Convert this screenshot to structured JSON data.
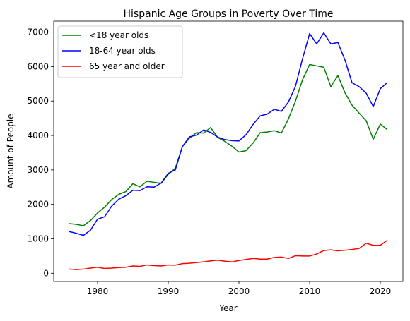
{
  "chart_data": {
    "type": "line",
    "title": "Hispanic Age Groups in Poverty Over Time",
    "xlabel": "Year",
    "ylabel": "Amount of People",
    "xlim": [
      1973.8,
      2023.2
    ],
    "ylim": [
      -240,
      7320
    ],
    "xticks": [
      1980,
      1990,
      2000,
      2010,
      2020
    ],
    "yticks": [
      0,
      1000,
      2000,
      3000,
      4000,
      5000,
      6000,
      7000
    ],
    "grid": false,
    "legend_position": "upper-left",
    "x": [
      1976,
      1977,
      1978,
      1979,
      1980,
      1981,
      1982,
      1983,
      1984,
      1985,
      1986,
      1987,
      1988,
      1989,
      1990,
      1991,
      1992,
      1993,
      1994,
      1995,
      1996,
      1997,
      1998,
      1999,
      2000,
      2001,
      2002,
      2003,
      2004,
      2005,
      2006,
      2007,
      2008,
      2009,
      2010,
      2011,
      2012,
      2013,
      2014,
      2015,
      2016,
      2017,
      2018,
      2019,
      2020,
      2021
    ],
    "series": [
      {
        "name": "<18 year olds",
        "color": "#008000",
        "values": [
          1440,
          1420,
          1380,
          1530,
          1750,
          1920,
          2140,
          2290,
          2370,
          2600,
          2510,
          2670,
          2640,
          2610,
          2870,
          3050,
          3680,
          3920,
          4080,
          4070,
          4230,
          3940,
          3830,
          3690,
          3520,
          3560,
          3780,
          4080,
          4100,
          4140,
          4070,
          4480,
          5000,
          5620,
          6060,
          6020,
          5980,
          5420,
          5740,
          5240,
          4880,
          4650,
          4430,
          3890,
          4330,
          4170
        ]
      },
      {
        "name": "18-64 year olds",
        "color": "#0000ff",
        "values": [
          1210,
          1160,
          1100,
          1250,
          1570,
          1640,
          1950,
          2150,
          2250,
          2410,
          2400,
          2510,
          2500,
          2620,
          2900,
          3000,
          3680,
          3960,
          4010,
          4160,
          4090,
          3950,
          3880,
          3850,
          3840,
          4020,
          4320,
          4570,
          4620,
          4760,
          4700,
          4970,
          5430,
          6230,
          6960,
          6660,
          6980,
          6660,
          6700,
          6190,
          5530,
          5420,
          5230,
          4840,
          5360,
          5540
        ]
      },
      {
        "name": "65 year and older",
        "color": "#ff0000",
        "values": [
          120,
          105,
          120,
          150,
          175,
          140,
          150,
          165,
          175,
          210,
          200,
          240,
          220,
          210,
          240,
          235,
          280,
          290,
          310,
          330,
          360,
          380,
          350,
          330,
          370,
          400,
          430,
          410,
          410,
          460,
          470,
          430,
          510,
          500,
          500,
          560,
          660,
          680,
          650,
          670,
          690,
          720,
          870,
          810,
          810,
          960
        ]
      }
    ]
  }
}
